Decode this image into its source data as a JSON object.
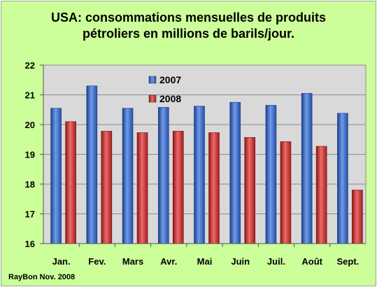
{
  "chart_data": {
    "type": "bar",
    "title_line1": "USA: consommations mensuelles de produits",
    "title_line2": "pétroliers en millions de barils/jour.",
    "categories": [
      "Jan.",
      "Fev.",
      "Mars",
      "Avr.",
      "Mai",
      "Juin",
      "Juil.",
      "Août",
      "Sept."
    ],
    "series": [
      {
        "name": "2007",
        "values": [
          20.55,
          21.3,
          20.55,
          20.58,
          20.62,
          20.75,
          20.65,
          21.05,
          20.38
        ]
      },
      {
        "name": "2008",
        "values": [
          20.1,
          19.78,
          19.73,
          19.78,
          19.73,
          19.57,
          19.43,
          19.27,
          17.8
        ]
      }
    ],
    "ylim": [
      16,
      22
    ],
    "yticks": [
      "16",
      "17",
      "18",
      "19",
      "20",
      "21",
      "22"
    ],
    "legend_position": "top-center",
    "grid": true,
    "colors": {
      "2007": "#3366cc",
      "2008": "#cc2222",
      "plot_bg": "#d9d9d9",
      "page_bg": "#ccff99"
    }
  },
  "credit": "RayBon Nov. 2008"
}
